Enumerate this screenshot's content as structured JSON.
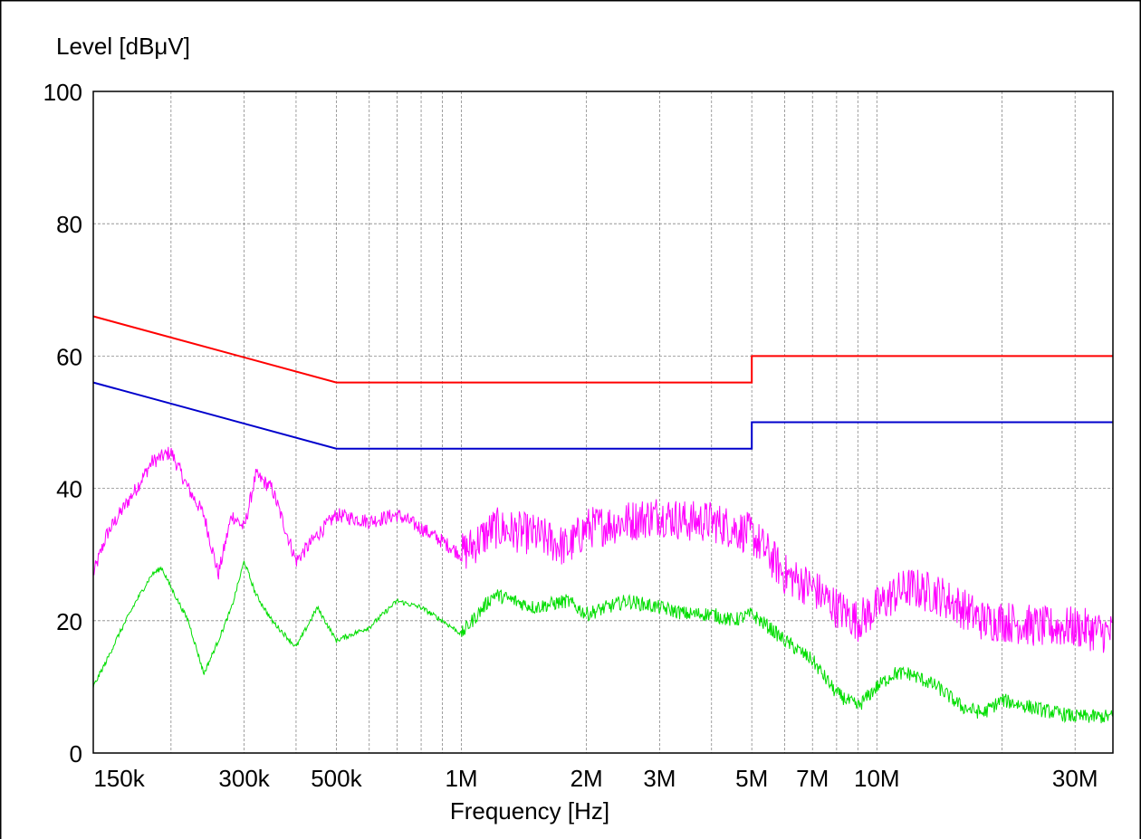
{
  "chart_data": {
    "type": "line",
    "ylabel": "Level [dBμV]",
    "xlabel": "Frequency [Hz]",
    "xscale": "log",
    "xlim": [
      130000,
      37000000
    ],
    "ylim": [
      0,
      100
    ],
    "grid": true,
    "y_ticks": [
      0,
      20,
      40,
      60,
      80,
      100
    ],
    "y_tick_labels": [
      "0",
      "20",
      "40",
      "60",
      "80",
      "100"
    ],
    "x_ticks": [
      150000,
      300000,
      500000,
      1000000,
      2000000,
      3000000,
      5000000,
      7000000,
      10000000,
      30000000
    ],
    "x_tick_labels": [
      "150k",
      "300k",
      "500k",
      "1M",
      "2M",
      "3M",
      "5M",
      "7M",
      "10M",
      "30M"
    ],
    "colors": {
      "quasi_peak_limit": "#ff0000",
      "average_limit": "#0000cc",
      "peak_trace": "#ff00ff",
      "average_trace": "#00dd00",
      "grid": "#888888"
    },
    "series": [
      {
        "color": "#ff0000",
        "x": [
          130000,
          500000,
          5000000,
          5000000,
          37000000
        ],
        "y": [
          66,
          56,
          56,
          60,
          60
        ]
      },
      {
        "color": "#0000cc",
        "x": [
          130000,
          500000,
          5000000,
          5000000,
          37000000
        ],
        "y": [
          56,
          46,
          46,
          50,
          50
        ]
      },
      {
        "color": "#ff00ff",
        "x": [
          130000,
          140000,
          150000,
          165000,
          180000,
          200000,
          220000,
          240000,
          260000,
          280000,
          300000,
          320000,
          350000,
          400000,
          450000,
          500000,
          600000,
          700000,
          800000,
          900000,
          1000000,
          1200000,
          1500000,
          1800000,
          2000000,
          2500000,
          3000000,
          3500000,
          4000000,
          4500000,
          5000000,
          5500000,
          6000000,
          7000000,
          8000000,
          9000000,
          10000000,
          11000000,
          12000000,
          14000000,
          16000000,
          18000000,
          20000000,
          25000000,
          30000000,
          37000000
        ],
        "y": [
          27,
          33,
          36,
          40,
          44,
          45.5,
          40,
          36,
          27,
          36,
          34,
          42,
          40,
          29,
          33,
          36,
          35,
          36,
          34,
          32,
          30,
          34,
          33,
          31,
          34,
          35,
          36,
          35,
          35,
          34,
          33,
          30,
          27,
          25,
          22,
          20,
          22,
          24,
          25,
          24,
          22,
          20,
          20,
          19,
          19,
          18
        ]
      },
      {
        "color": "#00dd00",
        "x": [
          130000,
          140000,
          150000,
          165000,
          180000,
          190000,
          200000,
          220000,
          240000,
          260000,
          280000,
          300000,
          320000,
          350000,
          400000,
          450000,
          500000,
          600000,
          700000,
          800000,
          900000,
          1000000,
          1200000,
          1500000,
          1800000,
          2000000,
          2500000,
          3000000,
          3500000,
          4000000,
          4500000,
          5000000,
          5500000,
          6000000,
          7000000,
          8000000,
          9000000,
          10000000,
          11000000,
          12000000,
          14000000,
          16000000,
          18000000,
          20000000,
          25000000,
          30000000,
          37000000
        ],
        "y": [
          10,
          14,
          18,
          23,
          27,
          28,
          25,
          20,
          12,
          17,
          22,
          29,
          24,
          20,
          16,
          22,
          17,
          19,
          23,
          22,
          20,
          18,
          24,
          22,
          23,
          21,
          23,
          22,
          21,
          21,
          20,
          21,
          19,
          17,
          14,
          9,
          7,
          10,
          12,
          12,
          10,
          7,
          6,
          8,
          6.5,
          5.5,
          5.5
        ]
      }
    ]
  }
}
